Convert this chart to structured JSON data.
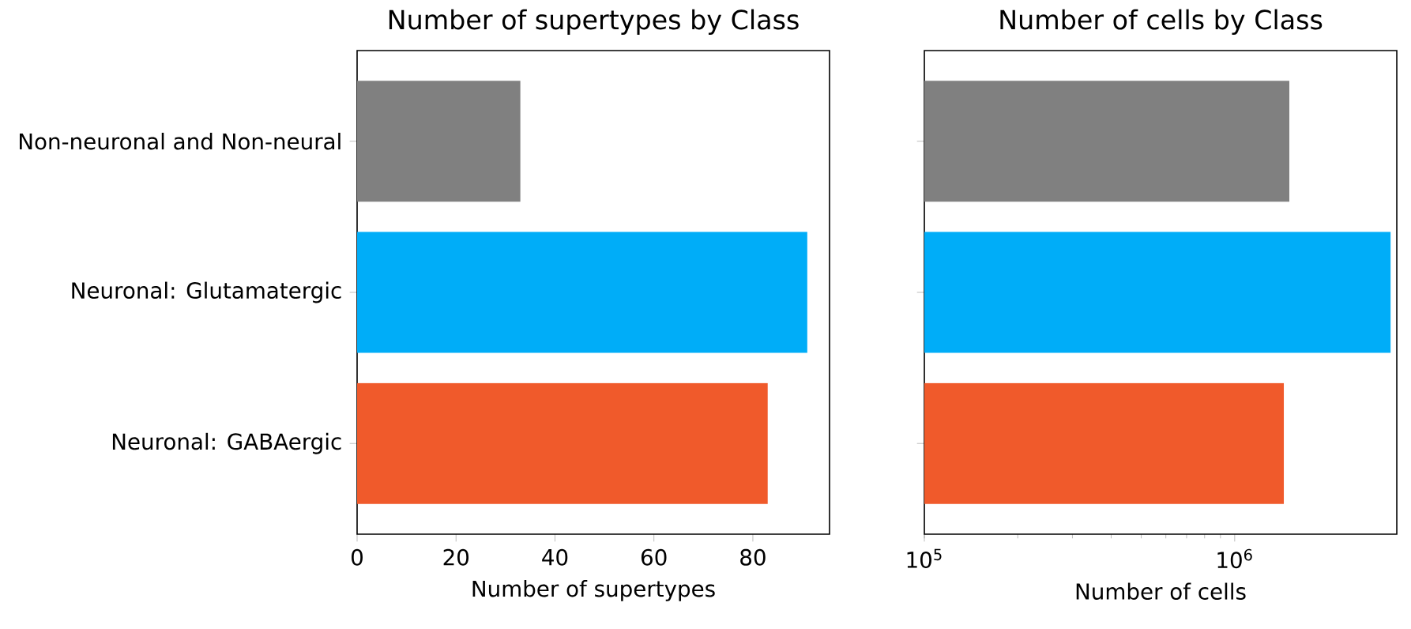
{
  "chart_data": [
    {
      "type": "bar",
      "orientation": "horizontal",
      "title": "Number of supertypes by Class",
      "xlabel": "Number of supertypes",
      "categories": [
        "Non-neuronal and Non-neural",
        "Neuronal: Glutamatergic",
        "Neuronal: GABAergic"
      ],
      "values": [
        33,
        91,
        83
      ],
      "colors": [
        "#808080",
        "#00adf8",
        "#f05a2b"
      ],
      "xlim": [
        0,
        95.5
      ],
      "xticks": [
        0,
        20,
        40,
        60,
        80
      ]
    },
    {
      "type": "bar",
      "orientation": "horizontal",
      "title": "Number of cells by Class",
      "xlabel": "Number of cells",
      "categories": [
        null,
        null,
        null
      ],
      "values": [
        1500000,
        3180000,
        1440000
      ],
      "colors": [
        "#808080",
        "#00adf8",
        "#f05a2b"
      ],
      "log": "x",
      "xlim": [
        100000,
        3330000
      ],
      "xticks": [
        {
          "value": 100000,
          "label": "10$^{5}$"
        },
        {
          "value": 1000000,
          "label": "10$^{6}$"
        }
      ],
      "tick_labels": "x"
    }
  ]
}
